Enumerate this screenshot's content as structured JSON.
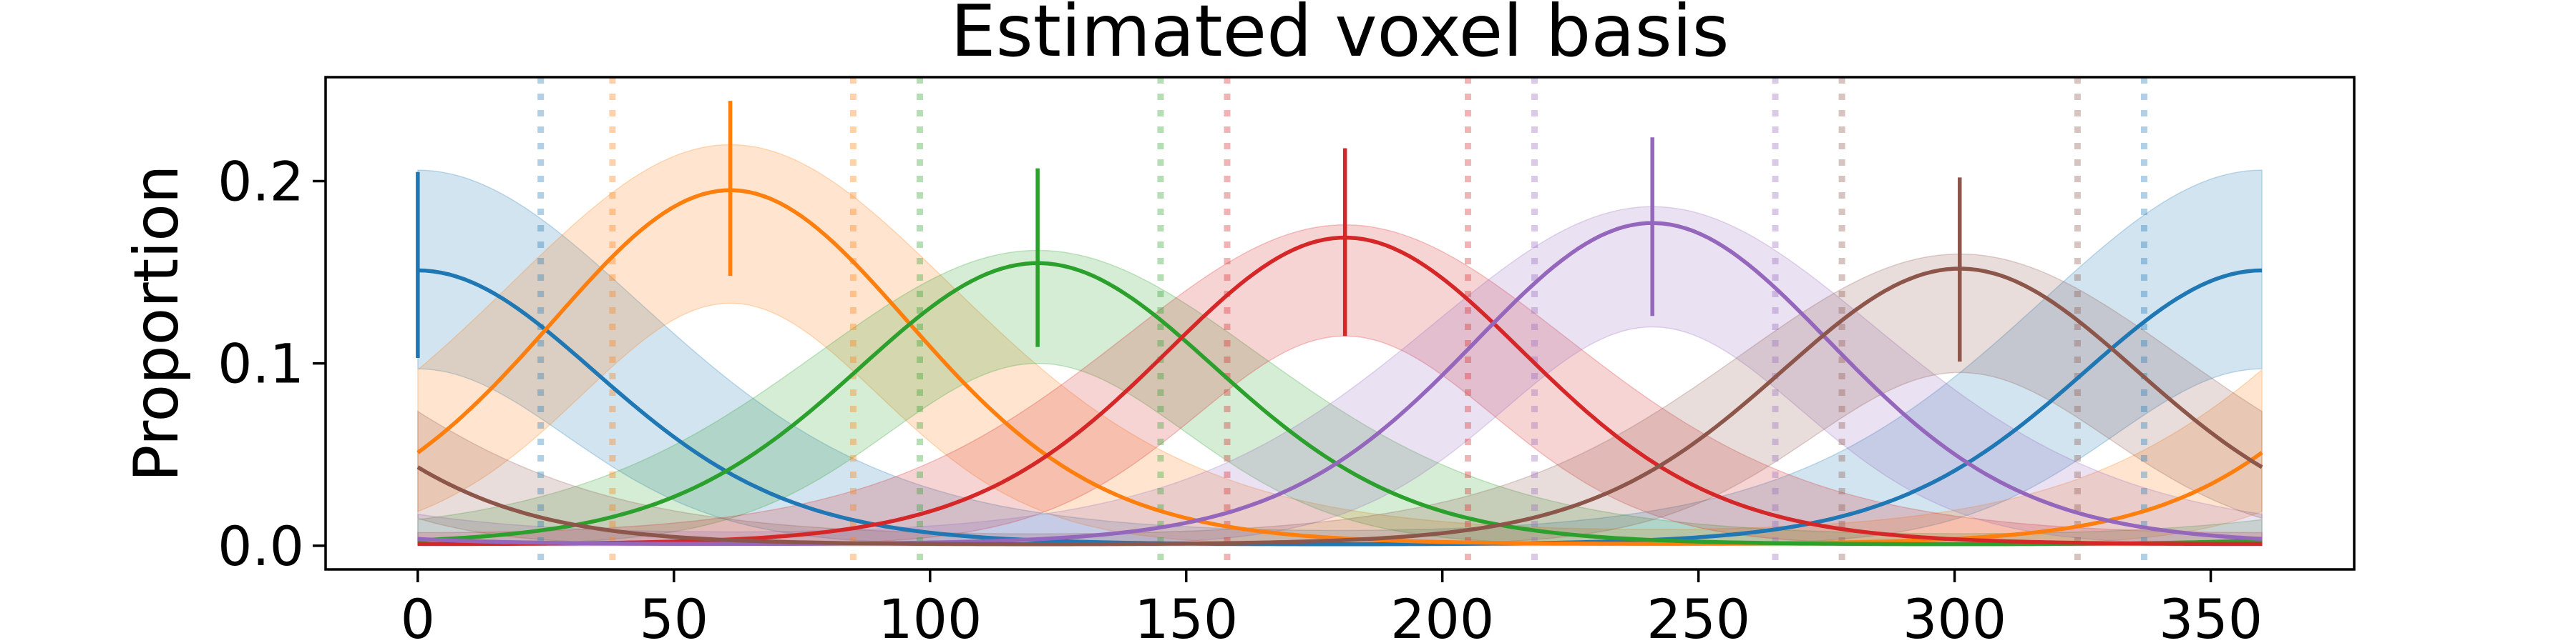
{
  "chart_data": {
    "type": "line",
    "title": "Estimated voxel basis",
    "xlabel": "",
    "ylabel": "Proportion",
    "xlim": [
      -18,
      378
    ],
    "ylim": [
      -0.013,
      0.257
    ],
    "xticks": [
      0,
      50,
      100,
      150,
      200,
      250,
      300,
      350
    ],
    "xtick_labels": [
      "0",
      "50",
      "100",
      "150",
      "200",
      "250",
      "300",
      "350"
    ],
    "yticks": [
      0.0,
      0.1,
      0.2
    ],
    "ytick_labels": [
      "0.0",
      "0.1",
      "0.2"
    ],
    "grid": false,
    "legend": "none",
    "x_range": [
      0,
      360
    ],
    "kappa": 2.6,
    "band_kappa": 1.6,
    "series": [
      {
        "color": "#1f77b4",
        "peak_x": 0,
        "peak_y": 0.151,
        "band_low": 0.097,
        "band_high": 0.206,
        "marker_low": 0.103,
        "marker_high": 0.205,
        "dotted_x": [
          24,
          337
        ]
      },
      {
        "color": "#ff7f0e",
        "peak_x": 61,
        "peak_y": 0.195,
        "band_low": 0.133,
        "band_high": 0.22,
        "marker_low": 0.148,
        "marker_high": 0.244,
        "dotted_x": [
          38,
          85
        ]
      },
      {
        "color": "#2ca02c",
        "peak_x": 121,
        "peak_y": 0.155,
        "band_low": 0.1,
        "band_high": 0.162,
        "marker_low": 0.109,
        "marker_high": 0.207,
        "dotted_x": [
          98,
          145
        ]
      },
      {
        "color": "#d62728",
        "peak_x": 181,
        "peak_y": 0.169,
        "band_low": 0.115,
        "band_high": 0.176,
        "marker_low": 0.115,
        "marker_high": 0.218,
        "dotted_x": [
          158,
          205
        ]
      },
      {
        "color": "#9467bd",
        "peak_x": 241,
        "peak_y": 0.177,
        "band_low": 0.12,
        "band_high": 0.186,
        "marker_low": 0.126,
        "marker_high": 0.224,
        "dotted_x": [
          218,
          265
        ]
      },
      {
        "color": "#8c564b",
        "peak_x": 301,
        "peak_y": 0.152,
        "band_low": 0.095,
        "band_high": 0.16,
        "marker_low": 0.101,
        "marker_high": 0.202,
        "dotted_x": [
          278,
          324
        ]
      }
    ]
  }
}
